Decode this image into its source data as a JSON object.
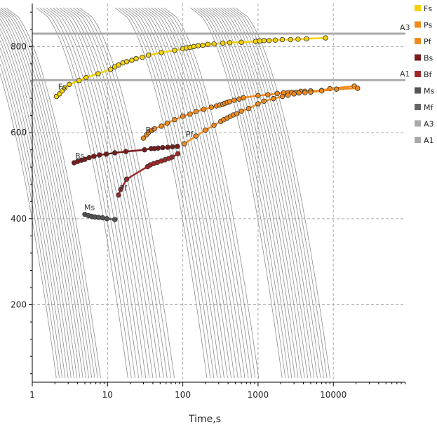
{
  "chart_data": {
    "type": "line",
    "xlabel": "Time,s",
    "ylabel": "",
    "x_scale": "log",
    "xlim": [
      1,
      80000
    ],
    "ylim": [
      20,
      900
    ],
    "x_ticks": [
      1,
      10,
      100,
      1000,
      10000
    ],
    "x_tick_labels": [
      "1",
      "10",
      "100",
      "1000",
      "10000"
    ],
    "y_ticks": [
      200,
      400,
      600,
      800
    ],
    "y_tick_labels": [
      "200",
      "400",
      "600",
      "800"
    ],
    "grid": true,
    "legend_position": "right",
    "hlines": [
      {
        "name": "A3",
        "value": 830,
        "color": "#aaaaaa"
      },
      {
        "name": "A1",
        "value": 722,
        "color": "#aaaaaa"
      }
    ],
    "point_labels": [
      {
        "text": "Fs",
        "x": 2.2,
        "y": 700
      },
      {
        "text": "Bs",
        "x": 32,
        "y": 600
      },
      {
        "text": "Pf",
        "x": 110,
        "y": 590
      },
      {
        "text": "Bs",
        "x": 3.7,
        "y": 540
      },
      {
        "text": "Pf",
        "x": 14.5,
        "y": 465
      },
      {
        "text": "Ms",
        "x": 4.9,
        "y": 420
      }
    ],
    "series": [
      {
        "name": "Fs",
        "color": "#f5d20a",
        "x": [
          2.1,
          2.3,
          2.5,
          2.7,
          3.1,
          4.2,
          5.2,
          7.5,
          11,
          12.5,
          14,
          16,
          18,
          21,
          24,
          29,
          35,
          52,
          78,
          100,
          112,
          125,
          140,
          160,
          185,
          215,
          260,
          340,
          420,
          600,
          930,
          1050,
          1200,
          1400,
          1700,
          2100,
          2700,
          3400,
          4400,
          7900
        ],
        "y": [
          684,
          690,
          697,
          704,
          712,
          721,
          728,
          737,
          747,
          753,
          757,
          762,
          765,
          768,
          772,
          775,
          780,
          786,
          791,
          795,
          797,
          798,
          800,
          802,
          803,
          805,
          806,
          808,
          809,
          810,
          812,
          813,
          814,
          814,
          815,
          816,
          816,
          817,
          818,
          820
        ]
      },
      {
        "name": "Ps",
        "color": "#f08c1e",
        "x": [
          30,
          33,
          35,
          38,
          42,
          52,
          62,
          78,
          100,
          125,
          150,
          190,
          240,
          280,
          310,
          340,
          360,
          390,
          420,
          480,
          560,
          640,
          1000,
          1350,
          1800,
          2200,
          2500,
          2800,
          3200,
          3700,
          4200,
          5000,
          7000,
          9000,
          19000
        ],
        "y": [
          587,
          595,
          600,
          605,
          609,
          615,
          622,
          630,
          638,
          643,
          649,
          654,
          659,
          662,
          664,
          666,
          668,
          670,
          672,
          675,
          678,
          681,
          686,
          688,
          691,
          693,
          693,
          694,
          694,
          696,
          696,
          697,
          698,
          702,
          708
        ]
      },
      {
        "name": "Pf",
        "color": "#f08c1e",
        "x": [
          105,
          150,
          200,
          260,
          320,
          350,
          390,
          430,
          470,
          520,
          600,
          750,
          1000,
          1200,
          1600,
          2100,
          2500,
          3000,
          3500,
          4200,
          5000,
          7000,
          11000,
          21000
        ],
        "y": [
          574,
          592,
          606,
          617,
          626,
          630,
          634,
          638,
          641,
          644,
          650,
          656,
          667,
          673,
          679,
          684,
          687,
          690,
          692,
          693,
          694,
          697,
          701,
          703
        ]
      },
      {
        "name": "Bs",
        "color": "#7a1a1a",
        "x": [
          3.6,
          4.0,
          4.5,
          5.0,
          5.7,
          6.6,
          7.8,
          9.6,
          12.5,
          17.5,
          31,
          38,
          42,
          47,
          54,
          63,
          73,
          85
        ],
        "y": [
          530,
          533,
          536,
          538,
          542,
          545,
          548,
          550,
          553,
          556,
          560,
          563,
          563,
          564,
          565,
          566,
          567,
          568
        ]
      },
      {
        "name": "Bf",
        "color": "#a02828",
        "x": [
          14,
          15,
          18,
          34,
          37,
          41,
          46,
          52,
          58,
          65,
          72,
          86
        ],
        "y": [
          455,
          468,
          492,
          521,
          525,
          528,
          531,
          534,
          537,
          540,
          543,
          551
        ]
      },
      {
        "name": "Ms",
        "color": "#555555",
        "x": [
          5.0,
          5.6,
          6.2,
          6.8,
          7.6,
          8.6,
          9.8,
          12.5
        ],
        "y": [
          410,
          407,
          405,
          404,
          403,
          402,
          400,
          398
        ]
      },
      {
        "name": "Mf",
        "color": "#666666",
        "x": [],
        "y": []
      },
      {
        "name": "A3",
        "color": "#aaaaaa",
        "x": [],
        "y": []
      },
      {
        "name": "A1",
        "color": "#aaaaaa",
        "x": [],
        "y": []
      }
    ]
  }
}
